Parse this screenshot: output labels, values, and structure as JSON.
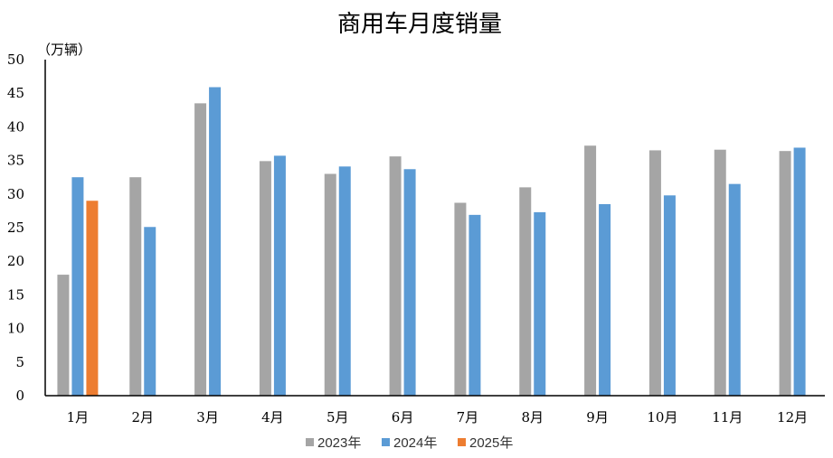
{
  "chart_data": {
    "type": "bar",
    "title": "商用车月度销量",
    "unit_label": "（万辆）",
    "categories": [
      "1月",
      "2月",
      "3月",
      "4月",
      "5月",
      "6月",
      "7月",
      "8月",
      "9月",
      "10月",
      "11月",
      "12月"
    ],
    "series": [
      {
        "name": "2023年",
        "color": "#a5a5a5",
        "values": [
          18.0,
          32.5,
          43.5,
          34.9,
          33.0,
          35.6,
          28.7,
          31.0,
          37.2,
          36.5,
          36.6,
          36.4
        ]
      },
      {
        "name": "2024年",
        "color": "#5b9bd5",
        "values": [
          32.5,
          25.1,
          45.9,
          35.7,
          34.1,
          33.7,
          26.9,
          27.3,
          28.5,
          29.8,
          31.5,
          36.9
        ]
      },
      {
        "name": "2025年",
        "color": "#ed7d31",
        "values": [
          29.0,
          null,
          null,
          null,
          null,
          null,
          null,
          null,
          null,
          null,
          null,
          null
        ]
      }
    ],
    "ylim": [
      0,
      50
    ],
    "yticks": [
      0,
      5,
      10,
      15,
      20,
      25,
      30,
      35,
      40,
      45,
      50
    ],
    "grid": false,
    "legend_position": "bottom"
  }
}
